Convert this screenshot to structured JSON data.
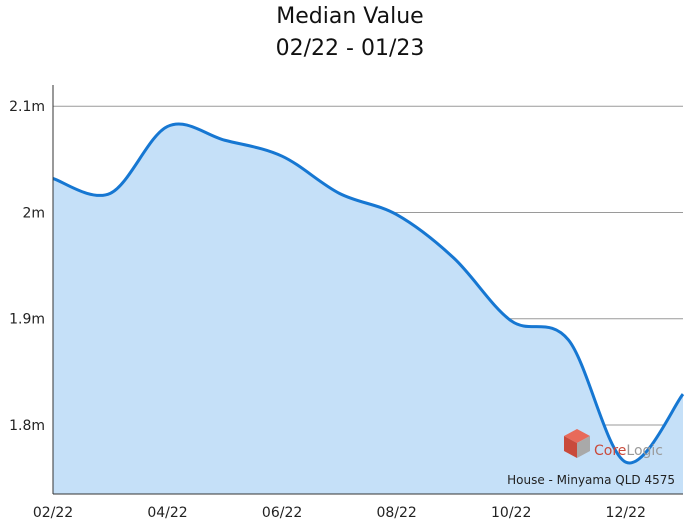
{
  "chart_data": {
    "type": "area",
    "title": "Median Value",
    "subtitle": "02/22 - 01/23",
    "xlabel": "",
    "ylabel": "",
    "x": [
      "02/22",
      "03/22",
      "04/22",
      "05/22",
      "06/22",
      "07/22",
      "08/22",
      "09/22",
      "10/22",
      "11/22",
      "12/22",
      "01/23"
    ],
    "x_tick_labels": [
      "02/22",
      "04/22",
      "06/22",
      "08/22",
      "10/22",
      "12/22"
    ],
    "series": [
      {
        "values": [
          2.032,
          2.018,
          2.081,
          2.068,
          2.053,
          2.018,
          1.998,
          1.957,
          1.898,
          1.88,
          1.765,
          1.829
        ]
      }
    ],
    "y_ticks": [
      1.8,
      1.9,
      2.0,
      2.1
    ],
    "y_tick_labels": [
      "1.8m",
      "1.9m",
      "2m",
      "2.1m"
    ],
    "ylim": [
      1.735,
      2.12
    ],
    "grid": true,
    "colors": {
      "line": "#1677d2",
      "fill": "#c5e0f8",
      "grid": "#9a9a9a",
      "axis": "#333333"
    },
    "source_text": "House - Minyama QLD 4575",
    "logo_text": "CoreLogic"
  }
}
